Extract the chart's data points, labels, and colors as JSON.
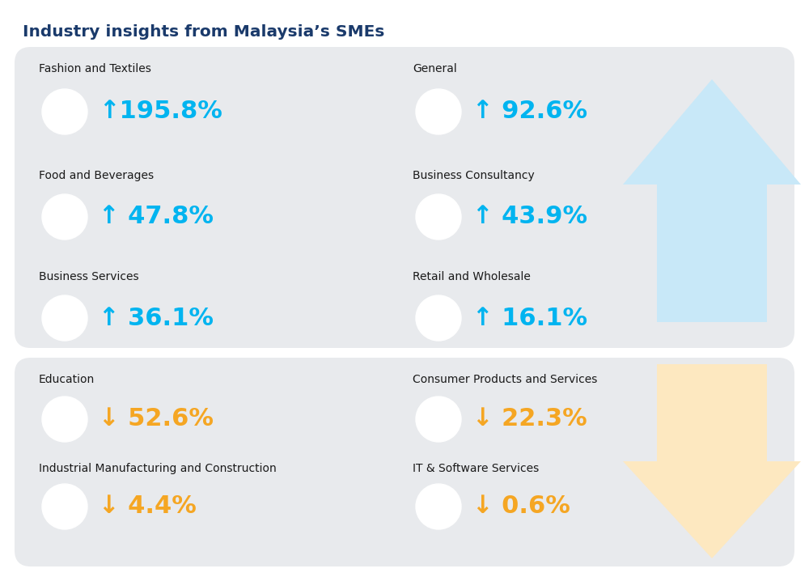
{
  "title": "Industry insights from Malaysia’s SMEs",
  "title_color": "#1a3a6b",
  "title_fontsize": 14.5,
  "bg_color": "#ffffff",
  "panel_color": "#e8eaed",
  "up_color": "#00b4f0",
  "down_color": "#f5a623",
  "label_color": "#1a1a1a",
  "arrow_up_color": "#c8e8f8",
  "arrow_down_color": "#fde8c0",
  "circle_color": "#ffffff",
  "up_items": [
    {
      "label": "Fashion and Textiles",
      "value": "↑195.8%",
      "col": 0,
      "row": 0
    },
    {
      "label": "Food and Beverages",
      "value": "↑ 47.8%",
      "col": 0,
      "row": 1
    },
    {
      "label": "Business Services",
      "value": "↑ 36.1%",
      "col": 0,
      "row": 2
    },
    {
      "label": "General",
      "value": "↑ 92.6%",
      "col": 1,
      "row": 0
    },
    {
      "label": "Business Consultancy",
      "value": "↑ 43.9%",
      "col": 1,
      "row": 1
    },
    {
      "label": "Retail and Wholesale",
      "value": "↑ 16.1%",
      "col": 1,
      "row": 2
    }
  ],
  "down_items": [
    {
      "label": "Education",
      "value": "↓ 52.6%",
      "col": 0,
      "row": 0
    },
    {
      "label": "Industrial Manufacturing and Construction",
      "value": "↓ 4.4%",
      "col": 0,
      "row": 1
    },
    {
      "label": "Consumer Products and Services",
      "value": "↓ 22.3%",
      "col": 1,
      "row": 0
    },
    {
      "label": "IT & Software Services",
      "value": "↓ 0.6%",
      "col": 1,
      "row": 1
    }
  ],
  "fig_w": 10.0,
  "fig_h": 7.13,
  "dpi": 100
}
